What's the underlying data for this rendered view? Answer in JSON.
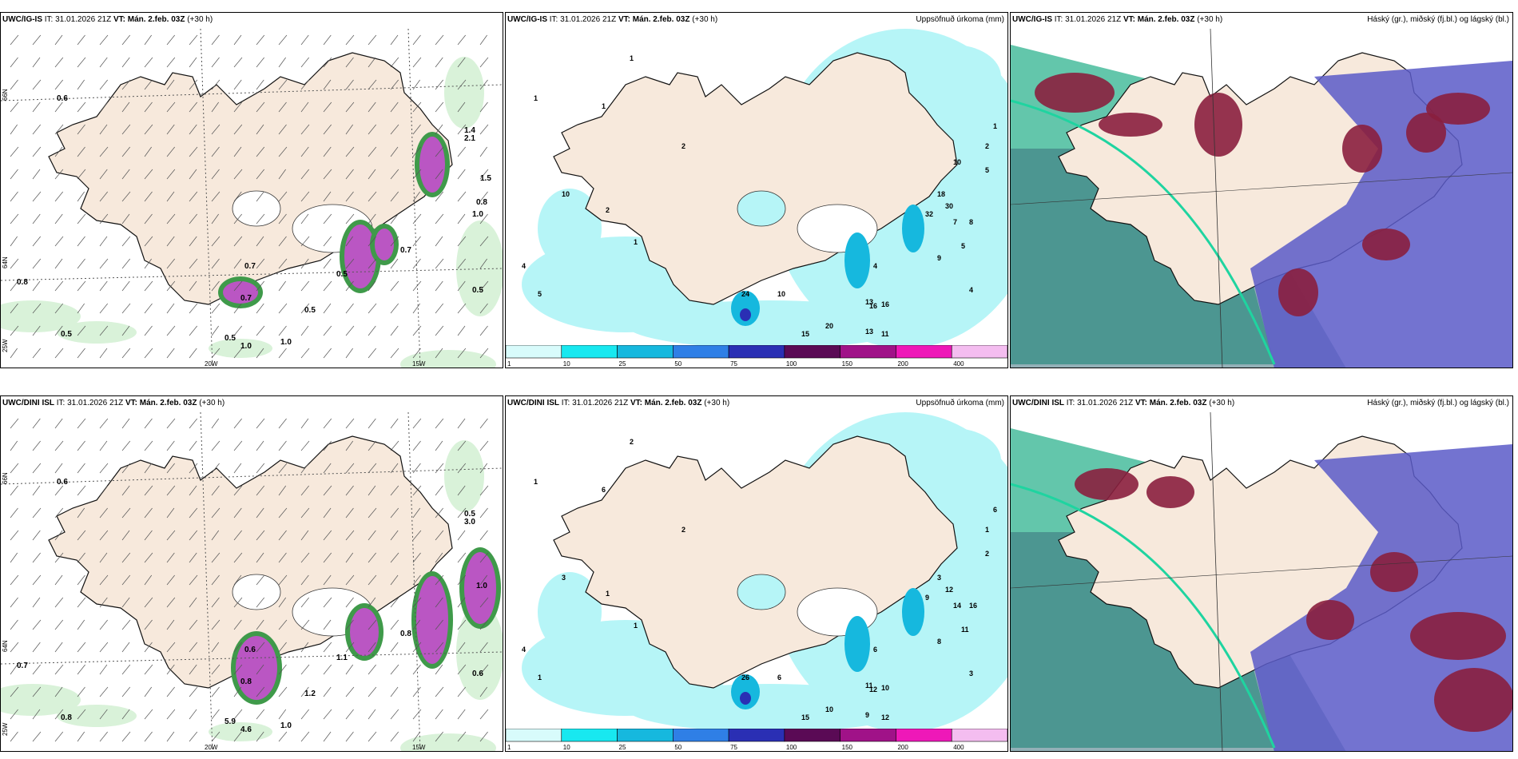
{
  "colors": {
    "land": "#f7e9dc",
    "sea": "#ffffff",
    "snowfall_light": "#d9f2d9",
    "snowfall_med": "#3f9a4a",
    "snowfall_heavy": "#0a4a1a",
    "mix": "#c84fd0",
    "precip_light": "#b6f5f7",
    "precip_med": "#16b8de",
    "cloud_high": "#2fb38f",
    "cloud_mid": "#5a5ac8",
    "cloud_low": "#8a1f3e"
  },
  "rows": [
    {
      "model": "UWC/IG-IS",
      "it": "IT: 31.01.2026 21Z",
      "vt": "VT: Mán. 2.feb. 03Z",
      "lead": "(+30 h)",
      "wind_panel": {
        "lat_labels": [
          "66N",
          "64N",
          "25W"
        ],
        "lon_labels": [
          "20W",
          "15W"
        ],
        "values": [
          "0.6",
          "0.7",
          "0.5",
          "0.8",
          "0.5",
          "0.5",
          "1.0",
          "0.5",
          "0.7",
          "0.5",
          "1.0",
          "0.7",
          "1.4",
          "2.1",
          "0.8",
          "1.5",
          "1.0"
        ]
      },
      "precip_panel": {
        "right_title": "Uppsöfnuð úrkoma (mm)",
        "values": [
          "1",
          "1",
          "1",
          "2",
          "4",
          "5",
          "10",
          "2",
          "1",
          "24",
          "10",
          "20",
          "15",
          "13",
          "16",
          "16",
          "11",
          "13",
          "4",
          "8",
          "7",
          "5",
          "9",
          "4",
          "18",
          "32",
          "30",
          "1",
          "2",
          "5",
          "10"
        ],
        "colorbar": [
          {
            "label": "1",
            "color": "#d8fbfb"
          },
          {
            "label": "10",
            "color": "#18e8f0"
          },
          {
            "label": "25",
            "color": "#16b8de"
          },
          {
            "label": "50",
            "color": "#2f7fe6"
          },
          {
            "label": "75",
            "color": "#2a2fb4"
          },
          {
            "label": "100",
            "color": "#5a0a55"
          },
          {
            "label": "150",
            "color": "#a01288"
          },
          {
            "label": "200",
            "color": "#ee18b8"
          },
          {
            "label": "400",
            "color": "#f4bdf0"
          }
        ]
      },
      "cloud_panel": {
        "right_title": "Háský (gr.), miðský (fj.bl.) og lágský (bl.)"
      }
    },
    {
      "model": "UWC/DINI ISL",
      "it": "IT: 31.01.2026 21Z",
      "vt": "VT: Mán. 2.feb. 03Z",
      "lead": "(+30 h)",
      "wind_panel": {
        "lat_labels": [
          "66N",
          "64N",
          "25W"
        ],
        "lon_labels": [
          "20W",
          "15W"
        ],
        "values": [
          "0.6",
          "0.6",
          "1.2",
          "0.7",
          "0.8",
          "5.9",
          "4.6",
          "1.1",
          "0.8",
          "0.6",
          "1.0",
          "0.8",
          "0.5",
          "3.0",
          "1.0"
        ]
      },
      "precip_panel": {
        "right_title": "Uppsöfnuð úrkoma (mm)",
        "values": [
          "2",
          "1",
          "6",
          "2",
          "4",
          "1",
          "3",
          "1",
          "1",
          "26",
          "6",
          "10",
          "15",
          "9",
          "12",
          "10",
          "12",
          "11",
          "6",
          "16",
          "14",
          "11",
          "8",
          "3",
          "3",
          "9",
          "12",
          "6",
          "1",
          "2"
        ],
        "colorbar": [
          {
            "label": "1",
            "color": "#d8fbfb"
          },
          {
            "label": "10",
            "color": "#18e8f0"
          },
          {
            "label": "25",
            "color": "#16b8de"
          },
          {
            "label": "50",
            "color": "#2f7fe6"
          },
          {
            "label": "75",
            "color": "#2a2fb4"
          },
          {
            "label": "100",
            "color": "#5a0a55"
          },
          {
            "label": "150",
            "color": "#a01288"
          },
          {
            "label": "200",
            "color": "#ee18b8"
          },
          {
            "label": "400",
            "color": "#f4bdf0"
          }
        ]
      },
      "cloud_panel": {
        "right_title": "Háský (gr.), miðský (fj.bl.) og lágský (bl.)"
      }
    }
  ]
}
